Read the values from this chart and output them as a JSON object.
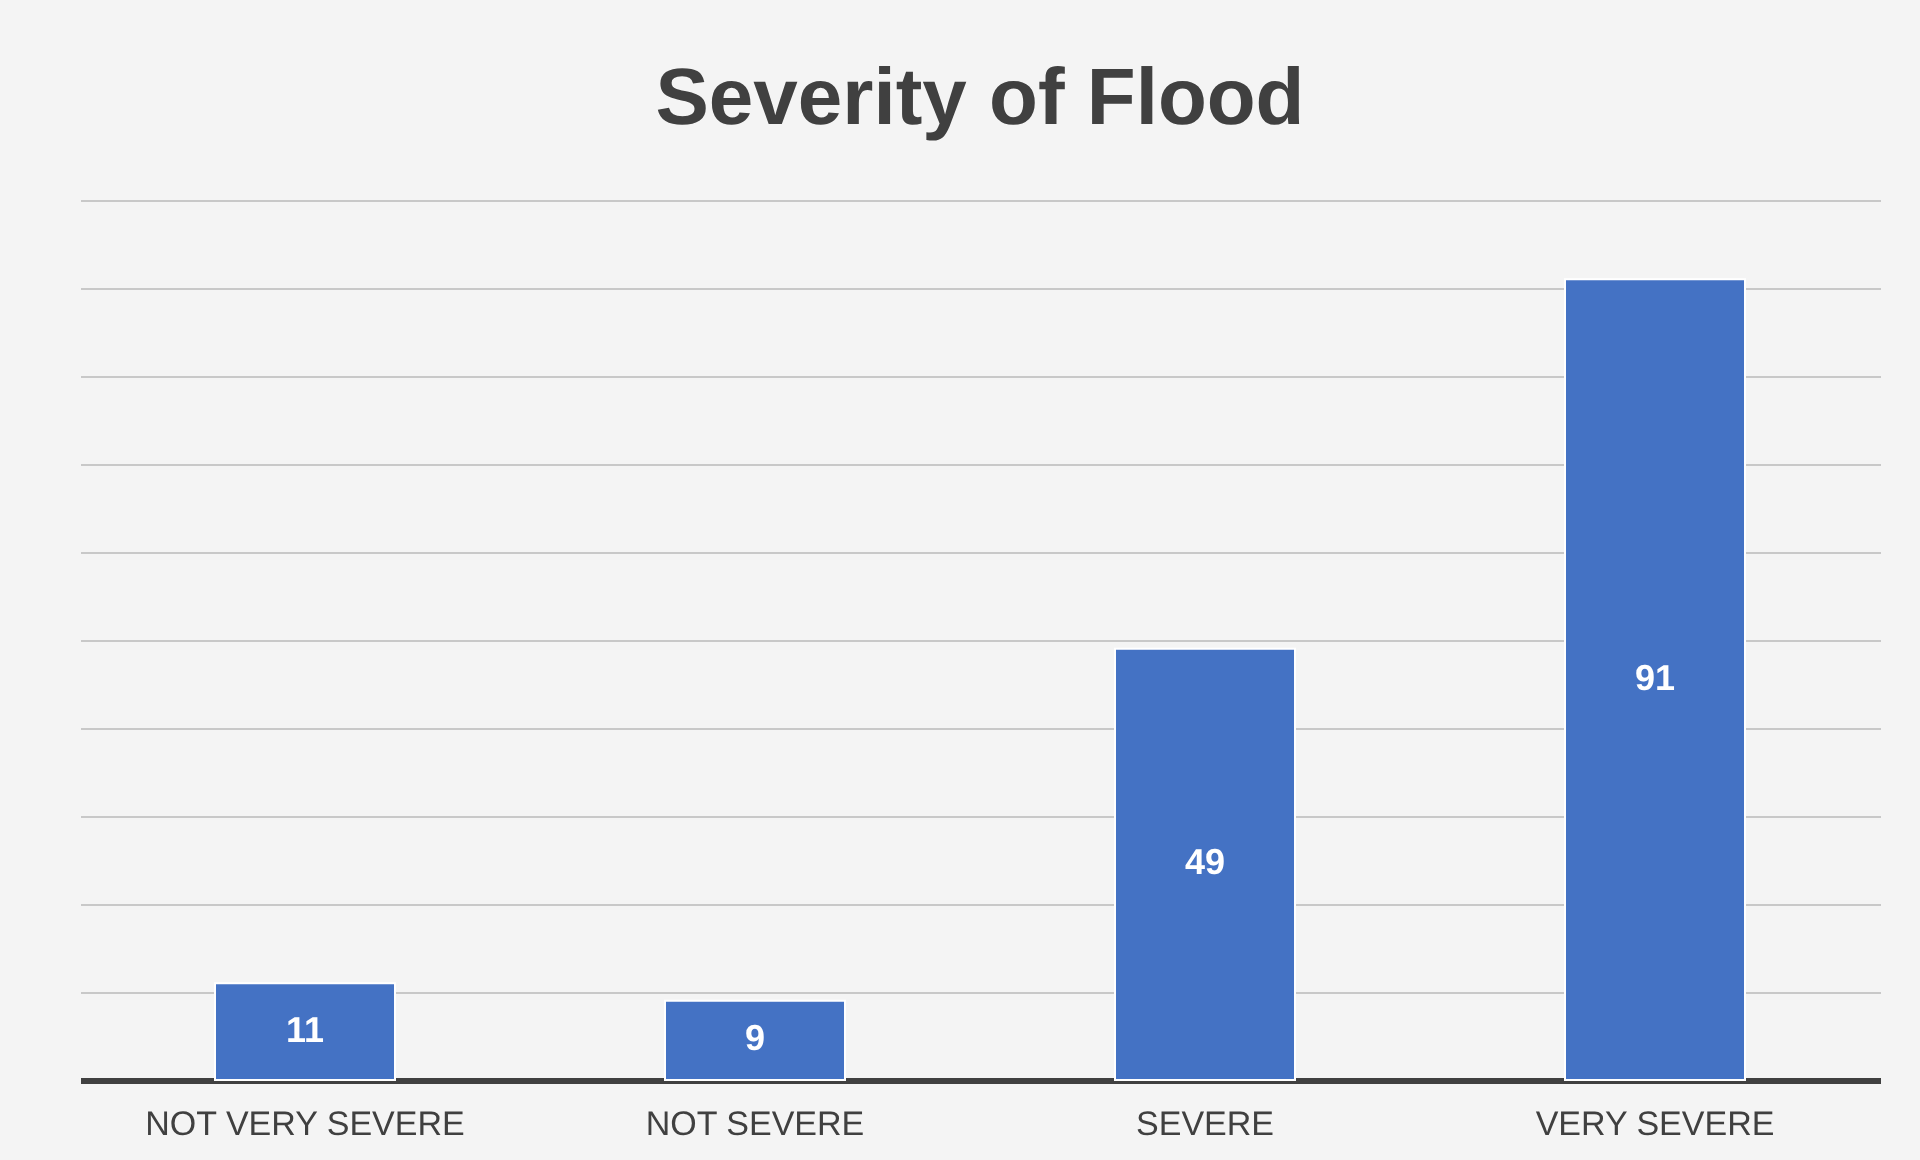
{
  "chart_data": {
    "type": "bar",
    "title": "Severity of Flood",
    "categories": [
      "NOT VERY SEVERE",
      "NOT SEVERE",
      "SEVERE",
      "VERY SEVERE"
    ],
    "values": [
      11,
      9,
      49,
      91
    ],
    "color": "#4472c4",
    "ylim": [
      0,
      100
    ],
    "yticks": [
      {
        "value": 0,
        "label": null
      },
      {
        "value": 10,
        "label": null
      },
      {
        "value": 20,
        "label": null
      },
      {
        "value": 30,
        "label": null
      },
      {
        "value": 40,
        "label": null
      },
      {
        "value": 50,
        "label": null
      },
      {
        "value": 60,
        "label": null
      },
      {
        "value": 70,
        "label": null
      },
      {
        "value": 80,
        "label": null
      },
      {
        "value": 90,
        "label": null
      },
      {
        "value": 100,
        "label": null
      }
    ],
    "tick_labels": "x",
    "grid": "y",
    "data_labels": true
  }
}
